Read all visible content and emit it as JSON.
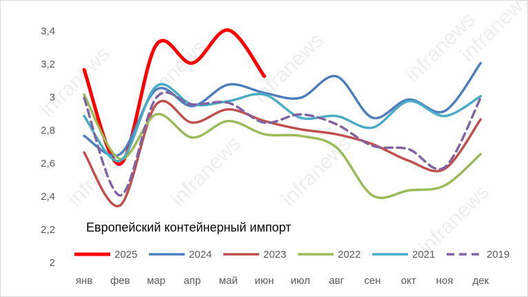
{
  "chart_data": {
    "type": "line",
    "annotation": "Европейский контейнерный импорт",
    "watermark": "infranews",
    "categories": [
      "янв",
      "фев",
      "мар",
      "апр",
      "май",
      "июн",
      "июл",
      "авг",
      "сен",
      "окт",
      "ноя",
      "дек"
    ],
    "ylim": [
      2,
      3.4
    ],
    "yticks": [
      2,
      {
        "value": 2.2,
        "label": "2,2"
      },
      {
        "value": 2.4,
        "label": "2,4"
      },
      {
        "value": 2.6,
        "label": "2,6"
      },
      {
        "value": 2.8,
        "label": "2,8"
      },
      3,
      {
        "value": 3.2,
        "label": "3,2"
      },
      {
        "value": 3.4,
        "label": "3,4"
      }
    ],
    "grid": false,
    "smooth": true,
    "legend": "bottom",
    "series": [
      {
        "name": "2025",
        "color": "#ff0000",
        "width": 5,
        "dash": false,
        "values": [
          3.17,
          2.6,
          3.32,
          3.21,
          3.41,
          3.13,
          null,
          null,
          null,
          null,
          null,
          null
        ]
      },
      {
        "name": "2024",
        "color": "#4f7ebd",
        "width": 3.5,
        "dash": false,
        "values": [
          2.77,
          2.66,
          3.05,
          2.95,
          3.08,
          3.03,
          3.0,
          3.13,
          2.88,
          2.99,
          2.92,
          3.21
        ]
      },
      {
        "name": "2023",
        "color": "#c0504d",
        "width": 3.5,
        "dash": false,
        "values": [
          2.67,
          2.35,
          2.96,
          2.85,
          2.93,
          2.86,
          2.81,
          2.78,
          2.72,
          2.62,
          2.57,
          2.87
        ]
      },
      {
        "name": "2022",
        "color": "#9bbb59",
        "width": 3.5,
        "dash": false,
        "values": [
          3.02,
          2.63,
          2.9,
          2.76,
          2.86,
          2.78,
          2.77,
          2.7,
          2.41,
          2.44,
          2.47,
          2.66
        ]
      },
      {
        "name": "2021",
        "color": "#4bacc6",
        "width": 3.5,
        "dash": false,
        "values": [
          2.89,
          2.62,
          3.07,
          2.96,
          2.98,
          3.02,
          2.88,
          2.89,
          2.82,
          2.98,
          2.89,
          3.01
        ]
      },
      {
        "name": "2019",
        "color": "#8064a2",
        "width": 3.5,
        "dash": true,
        "values": [
          3.0,
          2.41,
          3.0,
          2.96,
          2.97,
          2.85,
          2.9,
          2.84,
          2.71,
          2.69,
          2.58,
          3.0
        ]
      }
    ]
  }
}
